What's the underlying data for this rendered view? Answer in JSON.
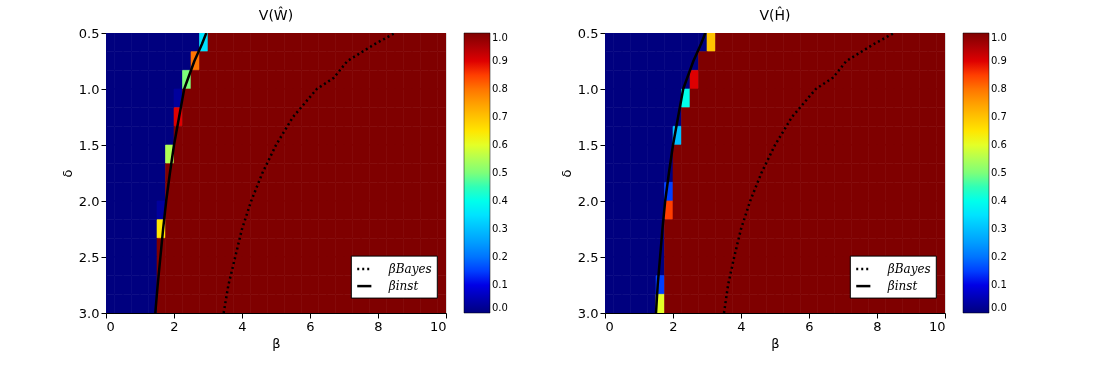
{
  "chart_data": [
    {
      "type": "heatmap",
      "title": "V(Ŵ)",
      "xlabel": "β",
      "ylabel": "δ",
      "x": [
        0.125,
        0.375,
        0.625,
        0.875,
        1.125,
        1.375,
        1.625,
        1.875,
        2.125,
        2.375,
        2.625,
        2.875,
        3.125,
        3.375,
        3.625,
        3.875,
        4.125,
        4.375,
        4.625,
        4.875,
        5.125,
        5.375,
        5.625,
        5.875,
        6.125,
        6.375,
        6.625,
        6.875,
        7.125,
        7.375,
        7.625,
        7.875,
        8.125,
        8.375,
        8.625,
        8.875,
        9.125,
        9.375,
        9.625,
        9.875
      ],
      "y": [
        0.5833,
        0.75,
        0.9167,
        1.0833,
        1.25,
        1.4167,
        1.5833,
        1.75,
        1.9167,
        2.0833,
        2.25,
        2.4167,
        2.5833,
        2.75,
        2.9167
      ],
      "cells": [
        [
          0,
          0,
          0,
          0,
          0,
          0,
          0,
          0,
          0,
          0,
          0,
          0.35,
          1,
          1,
          1,
          1,
          1,
          1,
          1,
          1,
          1,
          1,
          1,
          1,
          1,
          1,
          1,
          1,
          1,
          1,
          1,
          1,
          1,
          1,
          1,
          1,
          1,
          1,
          1,
          1
        ],
        [
          0,
          0,
          0,
          0,
          0,
          0,
          0,
          0,
          0,
          0,
          0.8,
          1,
          1,
          1,
          1,
          1,
          1,
          1,
          1,
          1,
          1,
          1,
          1,
          1,
          1,
          1,
          1,
          1,
          1,
          1,
          1,
          1,
          1,
          1,
          1,
          1,
          1,
          1,
          1,
          1
        ],
        [
          0,
          0,
          0,
          0,
          0,
          0,
          0,
          0,
          0,
          0.5,
          1,
          1,
          1,
          1,
          1,
          1,
          1,
          1,
          1,
          1,
          1,
          1,
          1,
          1,
          1,
          1,
          1,
          1,
          1,
          1,
          1,
          1,
          1,
          1,
          1,
          1,
          1,
          1,
          1,
          1
        ],
        [
          0,
          0,
          0,
          0,
          0,
          0,
          0,
          0,
          0.03,
          1,
          1,
          1,
          1,
          1,
          1,
          1,
          1,
          1,
          1,
          1,
          1,
          1,
          1,
          1,
          1,
          1,
          1,
          1,
          1,
          1,
          1,
          1,
          1,
          1,
          1,
          1,
          1,
          1,
          1,
          1
        ],
        [
          0,
          0,
          0,
          0,
          0,
          0,
          0,
          0,
          0.9,
          1,
          1,
          1,
          1,
          1,
          1,
          1,
          1,
          1,
          1,
          1,
          1,
          1,
          1,
          1,
          1,
          1,
          1,
          1,
          1,
          1,
          1,
          1,
          1,
          1,
          1,
          1,
          1,
          1,
          1,
          1
        ],
        [
          0,
          0,
          0,
          0,
          0,
          0,
          0,
          0,
          1,
          1,
          1,
          1,
          1,
          1,
          1,
          1,
          1,
          1,
          1,
          1,
          1,
          1,
          1,
          1,
          1,
          1,
          1,
          1,
          1,
          1,
          1,
          1,
          1,
          1,
          1,
          1,
          1,
          1,
          1,
          1
        ],
        [
          0,
          0,
          0,
          0,
          0,
          0,
          0,
          0.55,
          1,
          1,
          1,
          1,
          1,
          1,
          1,
          1,
          1,
          1,
          1,
          1,
          1,
          1,
          1,
          1,
          1,
          1,
          1,
          1,
          1,
          1,
          1,
          1,
          1,
          1,
          1,
          1,
          1,
          1,
          1,
          1
        ],
        [
          0,
          0,
          0,
          0,
          0,
          0,
          0,
          1,
          1,
          1,
          1,
          1,
          1,
          1,
          1,
          1,
          1,
          1,
          1,
          1,
          1,
          1,
          1,
          1,
          1,
          1,
          1,
          1,
          1,
          1,
          1,
          1,
          1,
          1,
          1,
          1,
          1,
          1,
          1,
          1
        ],
        [
          0,
          0,
          0,
          0,
          0,
          0,
          0,
          1,
          1,
          1,
          1,
          1,
          1,
          1,
          1,
          1,
          1,
          1,
          1,
          1,
          1,
          1,
          1,
          1,
          1,
          1,
          1,
          1,
          1,
          1,
          1,
          1,
          1,
          1,
          1,
          1,
          1,
          1,
          1,
          1
        ],
        [
          0,
          0,
          0,
          0,
          0,
          0,
          0.03,
          1,
          1,
          1,
          1,
          1,
          1,
          1,
          1,
          1,
          1,
          1,
          1,
          1,
          1,
          1,
          1,
          1,
          1,
          1,
          1,
          1,
          1,
          1,
          1,
          1,
          1,
          1,
          1,
          1,
          1,
          1,
          1,
          1
        ],
        [
          0,
          0,
          0,
          0,
          0,
          0,
          0.65,
          1,
          1,
          1,
          1,
          1,
          1,
          1,
          1,
          1,
          1,
          1,
          1,
          1,
          1,
          1,
          1,
          1,
          1,
          1,
          1,
          1,
          1,
          1,
          1,
          1,
          1,
          1,
          1,
          1,
          1,
          1,
          1,
          1
        ],
        [
          0,
          0,
          0,
          0,
          0,
          0,
          1,
          1,
          1,
          1,
          1,
          1,
          1,
          1,
          1,
          1,
          1,
          1,
          1,
          1,
          1,
          1,
          1,
          1,
          1,
          1,
          1,
          1,
          1,
          1,
          1,
          1,
          1,
          1,
          1,
          1,
          1,
          1,
          1,
          1
        ],
        [
          0,
          0,
          0,
          0,
          0,
          0,
          1,
          1,
          1,
          1,
          1,
          1,
          1,
          1,
          1,
          1,
          1,
          1,
          1,
          1,
          1,
          1,
          1,
          1,
          1,
          1,
          1,
          1,
          1,
          null,
          null,
          null,
          null,
          null,
          null,
          null,
          null,
          null,
          null,
          1
        ],
        [
          0,
          0,
          0,
          0,
          0,
          0,
          1,
          1,
          1,
          1,
          1,
          1,
          1,
          1,
          1,
          1,
          1,
          1,
          1,
          1,
          1,
          1,
          1,
          1,
          1,
          1,
          1,
          1,
          1,
          null,
          null,
          null,
          null,
          null,
          null,
          null,
          null,
          null,
          null,
          1
        ],
        [
          0,
          0,
          0,
          0,
          0,
          0,
          1,
          1,
          1,
          1,
          1,
          1,
          1,
          1,
          1,
          1,
          1,
          1,
          1,
          1,
          1,
          1,
          1,
          1,
          1,
          1,
          1,
          1,
          1,
          1,
          1,
          1,
          1,
          1,
          1,
          1,
          1,
          1,
          1,
          1
        ]
      ],
      "clim": [
        0,
        1
      ],
      "cticks": [
        {
          "value": 0,
          "label": "0.0"
        },
        {
          "value": 0.1,
          "label": "0.1"
        },
        {
          "value": 0.2,
          "label": "0.2"
        },
        {
          "value": 0.3,
          "label": "0.3"
        },
        {
          "value": 0.4,
          "label": "0.4"
        },
        {
          "value": 0.5,
          "label": "0.5"
        },
        {
          "value": 0.6,
          "label": "0.6"
        },
        {
          "value": 0.7,
          "label": "0.7"
        },
        {
          "value": 0.8,
          "label": "0.8"
        },
        {
          "value": 0.9,
          "label": "0.9"
        },
        {
          "value": 1,
          "label": "1.0"
        }
      ],
      "xlim": [
        0,
        10
      ],
      "xticks": [
        0,
        2,
        4,
        6,
        8,
        10
      ],
      "ylim": [
        3.0,
        0.5
      ],
      "yticks": [
        {
          "value": 0.5,
          "label": "0.5"
        },
        {
          "value": 1,
          "label": "1.0"
        },
        {
          "value": 1.5,
          "label": "1.5"
        },
        {
          "value": 2,
          "label": "2.0"
        },
        {
          "value": 2.5,
          "label": "2.5"
        },
        {
          "value": 3,
          "label": "3.0"
        }
      ],
      "series": [
        {
          "name": "βBayes",
          "type": "line",
          "color": "#000000",
          "line_style": "dotted",
          "x": [
            3.46,
            3.6,
            3.8,
            4.0,
            4.27,
            4.6,
            5.0,
            5.5,
            6.2,
            6.7,
            7.1,
            7.9,
            8.5
          ],
          "values": [
            3.0,
            2.75,
            2.5,
            2.25,
            2.0,
            1.75,
            1.5,
            1.25,
            1.0,
            0.9,
            0.75,
            0.6,
            0.5
          ]
        },
        {
          "name": "βinst",
          "type": "line",
          "color": "#000000",
          "line_style": "solid",
          "x": [
            1.45,
            1.52,
            1.6,
            1.68,
            1.77,
            1.88,
            2.0,
            2.15,
            2.3,
            2.42,
            2.6,
            2.82,
            2.95
          ],
          "values": [
            3.0,
            2.75,
            2.5,
            2.25,
            2.0,
            1.75,
            1.5,
            1.25,
            1.0,
            0.9,
            0.75,
            0.6,
            0.5
          ]
        }
      ],
      "legend": "bottom right",
      "grid": false
    },
    {
      "type": "heatmap",
      "title": "V(Ĥ)",
      "xlabel": "β",
      "ylabel": "δ",
      "x": [
        0.125,
        0.375,
        0.625,
        0.875,
        1.125,
        1.375,
        1.625,
        1.875,
        2.125,
        2.375,
        2.625,
        2.875,
        3.125,
        3.375,
        3.625,
        3.875,
        4.125,
        4.375,
        4.625,
        4.875,
        5.125,
        5.375,
        5.625,
        5.875,
        6.125,
        6.375,
        6.625,
        6.875,
        7.125,
        7.375,
        7.625,
        7.875,
        8.125,
        8.375,
        8.625,
        8.875,
        9.125,
        9.375,
        9.625,
        9.875
      ],
      "y": [
        0.5833,
        0.75,
        0.9167,
        1.0833,
        1.25,
        1.4167,
        1.5833,
        1.75,
        1.9167,
        2.0833,
        2.25,
        2.4167,
        2.5833,
        2.75,
        2.9167
      ],
      "cells": [
        [
          0,
          0,
          0,
          0,
          0,
          0,
          0,
          0,
          0,
          0,
          0,
          0,
          0.7,
          1,
          1,
          1,
          1,
          1,
          1,
          1,
          1,
          1,
          1,
          1,
          1,
          1,
          1,
          1,
          1,
          1,
          1,
          1,
          1,
          1,
          1,
          1,
          1,
          1,
          1,
          1
        ],
        [
          0,
          0,
          0,
          0,
          0,
          0,
          0,
          0,
          0,
          0,
          0,
          1,
          1,
          1,
          1,
          1,
          1,
          1,
          1,
          1,
          1,
          1,
          1,
          1,
          1,
          1,
          1,
          1,
          1,
          1,
          1,
          1,
          1,
          1,
          1,
          1,
          1,
          1,
          1,
          1
        ],
        [
          0,
          0,
          0,
          0,
          0,
          0,
          0,
          0,
          0,
          0,
          0.9,
          1,
          1,
          1,
          1,
          1,
          1,
          1,
          1,
          1,
          1,
          1,
          1,
          1,
          1,
          1,
          1,
          1,
          1,
          1,
          1,
          1,
          1,
          1,
          1,
          1,
          1,
          1,
          1,
          1
        ],
        [
          0,
          0,
          0,
          0,
          0,
          0,
          0,
          0,
          0,
          0.4,
          1,
          1,
          1,
          1,
          1,
          1,
          1,
          1,
          1,
          1,
          1,
          1,
          1,
          1,
          1,
          1,
          1,
          1,
          1,
          1,
          1,
          1,
          1,
          1,
          1,
          1,
          1,
          1,
          1,
          1
        ],
        [
          0,
          0,
          0,
          0,
          0,
          0,
          0,
          0,
          0,
          1,
          1,
          1,
          1,
          1,
          1,
          1,
          1,
          1,
          1,
          1,
          1,
          1,
          1,
          1,
          1,
          1,
          1,
          1,
          1,
          1,
          1,
          1,
          1,
          1,
          1,
          1,
          1,
          1,
          1,
          1
        ],
        [
          0,
          0,
          0,
          0,
          0,
          0,
          0,
          0,
          0.3,
          1,
          1,
          1,
          1,
          1,
          1,
          1,
          1,
          1,
          1,
          1,
          1,
          1,
          1,
          1,
          1,
          1,
          1,
          1,
          1,
          1,
          1,
          1,
          1,
          1,
          1,
          1,
          1,
          1,
          1,
          1
        ],
        [
          0,
          0,
          0,
          0,
          0,
          0,
          0,
          0,
          1,
          1,
          1,
          1,
          1,
          1,
          1,
          1,
          1,
          1,
          1,
          1,
          1,
          1,
          1,
          1,
          1,
          1,
          1,
          1,
          1,
          1,
          1,
          1,
          1,
          1,
          1,
          1,
          1,
          1,
          1,
          1
        ],
        [
          0,
          0,
          0,
          0,
          0,
          0,
          0,
          0,
          1,
          1,
          1,
          1,
          1,
          1,
          1,
          1,
          1,
          1,
          1,
          1,
          1,
          1,
          1,
          1,
          1,
          1,
          1,
          1,
          1,
          1,
          1,
          1,
          1,
          1,
          1,
          1,
          1,
          1,
          1,
          1
        ],
        [
          0,
          0,
          0,
          0,
          0,
          0,
          0,
          0.15,
          1,
          1,
          1,
          1,
          1,
          1,
          1,
          1,
          1,
          1,
          1,
          1,
          1,
          1,
          1,
          1,
          1,
          1,
          1,
          1,
          1,
          1,
          1,
          1,
          1,
          1,
          1,
          1,
          1,
          1,
          1,
          1
        ],
        [
          0,
          0,
          0,
          0,
          0,
          0,
          0,
          0.85,
          1,
          1,
          1,
          1,
          1,
          1,
          1,
          1,
          1,
          1,
          1,
          1,
          1,
          1,
          1,
          1,
          1,
          1,
          1,
          1,
          1,
          1,
          1,
          1,
          1,
          1,
          1,
          1,
          1,
          1,
          1,
          1
        ],
        [
          0,
          0,
          0,
          0,
          0,
          0,
          0,
          1,
          1,
          1,
          1,
          1,
          1,
          1,
          1,
          1,
          1,
          1,
          1,
          1,
          1,
          1,
          1,
          1,
          1,
          1,
          1,
          1,
          1,
          1,
          1,
          1,
          1,
          1,
          1,
          1,
          1,
          1,
          1,
          1
        ],
        [
          0,
          0,
          0,
          0,
          0,
          0,
          0,
          1,
          1,
          1,
          1,
          1,
          1,
          1,
          1,
          1,
          1,
          1,
          1,
          1,
          1,
          1,
          1,
          1,
          1,
          1,
          1,
          1,
          1,
          1,
          1,
          1,
          1,
          1,
          1,
          1,
          1,
          1,
          1,
          1
        ],
        [
          0,
          0,
          0,
          0,
          0,
          0,
          0,
          1,
          1,
          1,
          1,
          1,
          1,
          1,
          1,
          1,
          1,
          1,
          1,
          1,
          1,
          1,
          1,
          1,
          1,
          1,
          1,
          1,
          1,
          null,
          null,
          null,
          null,
          null,
          null,
          null,
          null,
          null,
          null,
          1
        ],
        [
          0,
          0,
          0,
          0,
          0,
          0,
          0.15,
          1,
          1,
          1,
          1,
          1,
          1,
          1,
          1,
          1,
          1,
          1,
          1,
          1,
          1,
          1,
          1,
          1,
          1,
          1,
          1,
          1,
          1,
          null,
          null,
          null,
          null,
          null,
          null,
          null,
          null,
          null,
          null,
          1
        ],
        [
          0,
          0,
          0,
          0,
          0,
          0,
          0.6,
          1,
          1,
          1,
          1,
          1,
          1,
          1,
          1,
          1,
          1,
          1,
          1,
          1,
          1,
          1,
          1,
          1,
          1,
          1,
          1,
          1,
          1,
          1,
          1,
          1,
          1,
          1,
          1,
          1,
          1,
          1,
          1,
          1
        ]
      ],
      "clim": [
        0,
        1
      ],
      "cticks": [
        {
          "value": 0,
          "label": "0.0"
        },
        {
          "value": 0.1,
          "label": "0.1"
        },
        {
          "value": 0.2,
          "label": "0.2"
        },
        {
          "value": 0.3,
          "label": "0.3"
        },
        {
          "value": 0.4,
          "label": "0.4"
        },
        {
          "value": 0.5,
          "label": "0.5"
        },
        {
          "value": 0.6,
          "label": "0.6"
        },
        {
          "value": 0.7,
          "label": "0.7"
        },
        {
          "value": 0.8,
          "label": "0.8"
        },
        {
          "value": 0.9,
          "label": "0.9"
        },
        {
          "value": 1,
          "label": "1.0"
        }
      ],
      "xlim": [
        0,
        10
      ],
      "xticks": [
        0,
        2,
        4,
        6,
        8,
        10
      ],
      "ylim": [
        3.0,
        0.5
      ],
      "yticks": [
        {
          "value": 0.5,
          "label": "0.5"
        },
        {
          "value": 1,
          "label": "1.0"
        },
        {
          "value": 1.5,
          "label": "1.5"
        },
        {
          "value": 2,
          "label": "2.0"
        },
        {
          "value": 2.5,
          "label": "2.5"
        },
        {
          "value": 3,
          "label": "3.0"
        }
      ],
      "series": [
        {
          "name": "βBayes",
          "type": "line",
          "color": "#000000",
          "line_style": "dotted",
          "x": [
            3.5,
            3.62,
            3.8,
            4.0,
            4.27,
            4.6,
            5.0,
            5.5,
            6.2,
            6.7,
            7.1,
            7.9,
            8.5
          ],
          "values": [
            3.0,
            2.75,
            2.5,
            2.25,
            2.0,
            1.75,
            1.5,
            1.25,
            1.0,
            0.9,
            0.75,
            0.6,
            0.5
          ]
        },
        {
          "name": "βinst",
          "type": "line",
          "color": "#000000",
          "line_style": "solid",
          "x": [
            1.5,
            1.55,
            1.62,
            1.69,
            1.77,
            1.88,
            2.0,
            2.15,
            2.3,
            2.42,
            2.6,
            2.82,
            2.95
          ],
          "values": [
            3.0,
            2.75,
            2.5,
            2.25,
            2.0,
            1.75,
            1.5,
            1.25,
            1.0,
            0.9,
            0.75,
            0.6,
            0.5
          ]
        }
      ],
      "legend": "bottom right",
      "grid": false
    }
  ]
}
